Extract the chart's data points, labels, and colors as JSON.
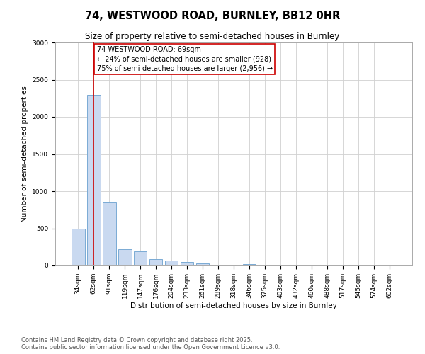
{
  "title1": "74, WESTWOOD ROAD, BURNLEY, BB12 0HR",
  "title2": "Size of property relative to semi-detached houses in Burnley",
  "xlabel": "Distribution of semi-detached houses by size in Burnley",
  "ylabel": "Number of semi-detached properties",
  "categories": [
    "34sqm",
    "62sqm",
    "91sqm",
    "119sqm",
    "147sqm",
    "176sqm",
    "204sqm",
    "233sqm",
    "261sqm",
    "289sqm",
    "318sqm",
    "346sqm",
    "375sqm",
    "403sqm",
    "432sqm",
    "460sqm",
    "488sqm",
    "517sqm",
    "545sqm",
    "574sqm",
    "602sqm"
  ],
  "values": [
    500,
    2300,
    850,
    220,
    195,
    90,
    65,
    45,
    25,
    12,
    4,
    18,
    0,
    0,
    0,
    0,
    0,
    0,
    0,
    0,
    0
  ],
  "bar_color": "#c9d9f0",
  "bar_edge_color": "#7aaad4",
  "property_line_x": 1.0,
  "annotation_text": "74 WESTWOOD ROAD: 69sqm\n← 24% of semi-detached houses are smaller (928)\n75% of semi-detached houses are larger (2,956) →",
  "annotation_box_color": "#ffffff",
  "annotation_box_edge": "#cc0000",
  "red_line_color": "#cc0000",
  "ylim": [
    0,
    3000
  ],
  "yticks": [
    0,
    500,
    1000,
    1500,
    2000,
    2500,
    3000
  ],
  "footer1": "Contains HM Land Registry data © Crown copyright and database right 2025.",
  "footer2": "Contains public sector information licensed under the Open Government Licence v3.0.",
  "background_color": "#ffffff",
  "grid_color": "#d0d0d0",
  "title1_fontsize": 10.5,
  "title2_fontsize": 8.5,
  "xlabel_fontsize": 7.5,
  "ylabel_fontsize": 7.5,
  "tick_fontsize": 6.5,
  "annot_fontsize": 7.0,
  "footer_fontsize": 6.0
}
